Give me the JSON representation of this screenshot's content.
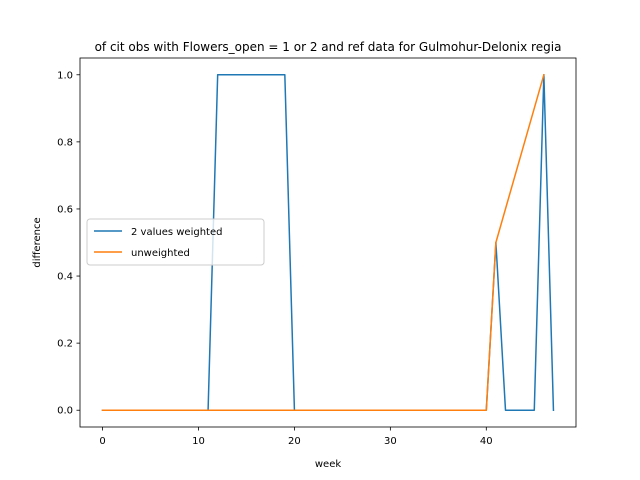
{
  "chart_data": {
    "type": "line",
    "title": "of cit obs with Flowers_open = 1 or 2 and ref data for Gulmohur-Delonix regia",
    "xlabel": "week",
    "ylabel": "difference",
    "xlim": [
      -2.35,
      49.35
    ],
    "ylim": [
      -0.05,
      1.05
    ],
    "xticks": [
      0,
      10,
      20,
      30,
      40
    ],
    "xtick_labels": [
      "0",
      "10",
      "20",
      "30",
      "40"
    ],
    "yticks": [
      0.0,
      0.2,
      0.4,
      0.6,
      0.8,
      1.0
    ],
    "ytick_labels": [
      "0.0",
      "0.2",
      "0.4",
      "0.6",
      "0.8",
      "1.0"
    ],
    "grid": false,
    "legend_position": "center-left",
    "series": [
      {
        "name": "2 values weighted",
        "color": "#1f77b4",
        "x": [
          0,
          11,
          12,
          19,
          20,
          40,
          41,
          42,
          45,
          46,
          47
        ],
        "y": [
          0,
          0,
          1,
          1,
          0,
          0,
          0.5,
          0,
          0,
          1,
          0
        ]
      },
      {
        "name": "unweighted",
        "color": "#ff7f0e",
        "x": [
          0,
          40,
          41,
          46
        ],
        "y": [
          0,
          0,
          0.5,
          1
        ]
      }
    ]
  }
}
